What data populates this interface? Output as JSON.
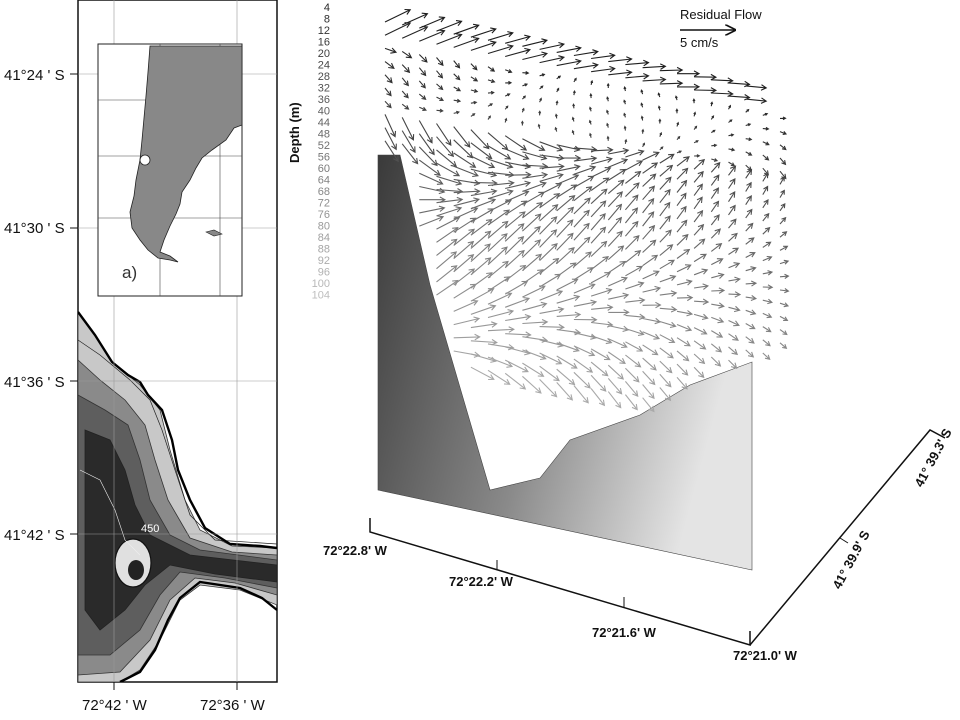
{
  "map": {
    "lat_labels": [
      "41°24 ' S",
      "41°30 ' S",
      "41°36 ' S",
      "41°42 ' S"
    ],
    "lon_labels": [
      "72°42 ' W",
      "72°36 ' W"
    ],
    "contour_label": "450",
    "inset_label": "a)"
  },
  "section": {
    "legend_title": "Residual Flow",
    "legend_scale": "5 cm/s",
    "depth_axis_title": "Depth (m)",
    "depth_ticks": [
      "4",
      "8",
      "12",
      "16",
      "20",
      "24",
      "28",
      "32",
      "36",
      "40",
      "44",
      "48",
      "52",
      "56",
      "60",
      "64",
      "68",
      "72",
      "76",
      "80",
      "84",
      "88",
      "92",
      "96",
      "100",
      "104"
    ],
    "lon_ticks": [
      "72°22.8' W",
      "72°22.2' W",
      "72°21.6' W",
      "72°21.0' W"
    ],
    "lat_ticks": [
      "41° 39.9' S",
      "41° 39.3' S"
    ]
  },
  "colors": {
    "bathy_deep": "#2a2a2a",
    "bathy_mid": "#6e6e6e",
    "bathy_shallow": "#c8c8c8",
    "inset_land": "#888888",
    "section_dark": "#3c3c3c",
    "section_light": "#e6e6e6"
  }
}
